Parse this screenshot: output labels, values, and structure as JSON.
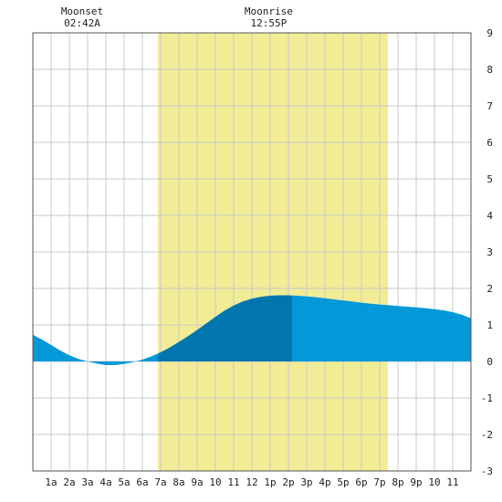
{
  "chart_data": {
    "type": "area",
    "x_unit": "hour of day",
    "xlim": [
      0,
      24
    ],
    "ylim": [
      -3,
      9
    ],
    "y_ticks": [
      9,
      8,
      7,
      6,
      5,
      4,
      3,
      2,
      1,
      0,
      -1,
      -2,
      -3
    ],
    "x_ticks": [
      {
        "x": 1,
        "label": "1a"
      },
      {
        "x": 2,
        "label": "2a"
      },
      {
        "x": 3,
        "label": "3a"
      },
      {
        "x": 4,
        "label": "4a"
      },
      {
        "x": 5,
        "label": "5a"
      },
      {
        "x": 6,
        "label": "6a"
      },
      {
        "x": 7,
        "label": "7a"
      },
      {
        "x": 8,
        "label": "8a"
      },
      {
        "x": 9,
        "label": "9a"
      },
      {
        "x": 10,
        "label": "10"
      },
      {
        "x": 11,
        "label": "11"
      },
      {
        "x": 12,
        "label": "12"
      },
      {
        "x": 13,
        "label": "1p"
      },
      {
        "x": 14,
        "label": "2p"
      },
      {
        "x": 15,
        "label": "3p"
      },
      {
        "x": 16,
        "label": "4p"
      },
      {
        "x": 17,
        "label": "5p"
      },
      {
        "x": 18,
        "label": "6p"
      },
      {
        "x": 19,
        "label": "7p"
      },
      {
        "x": 20,
        "label": "8p"
      },
      {
        "x": 21,
        "label": "9p"
      },
      {
        "x": 22,
        "label": "10"
      },
      {
        "x": 23,
        "label": "11"
      }
    ],
    "daylight": {
      "start": 6.85,
      "end": 19.45
    },
    "series": [
      {
        "x": [
          0,
          0.5,
          1,
          1.5,
          2,
          2.5,
          3,
          3.5,
          4,
          4.5,
          5,
          5.5,
          6,
          6.5,
          7,
          7.5,
          8,
          8.5,
          9,
          9.5,
          10,
          10.5,
          11,
          11.5,
          12,
          12.5,
          13,
          13.5,
          14,
          14.5,
          15,
          15.5,
          16,
          16.5,
          17,
          17.5,
          18,
          18.5,
          19,
          19.5,
          20,
          20.5,
          21,
          21.5,
          22,
          22.5,
          23,
          23.5,
          24
        ],
        "values": [
          0.73,
          0.6,
          0.45,
          0.3,
          0.17,
          0.07,
          0.0,
          -0.06,
          -0.1,
          -0.1,
          -0.07,
          -0.02,
          0.05,
          0.14,
          0.25,
          0.38,
          0.53,
          0.69,
          0.86,
          1.04,
          1.22,
          1.39,
          1.53,
          1.64,
          1.72,
          1.77,
          1.8,
          1.81,
          1.81,
          1.8,
          1.78,
          1.76,
          1.73,
          1.7,
          1.67,
          1.64,
          1.61,
          1.58,
          1.56,
          1.54,
          1.52,
          1.5,
          1.48,
          1.46,
          1.43,
          1.4,
          1.35,
          1.28,
          1.18
        ]
      }
    ],
    "highlight_range": [
      6.85,
      14.2
    ],
    "colors": {
      "water": "#0398d8",
      "water_highlight": "#0176ae",
      "daylight": "#f2ec97",
      "grid": "#c8c8c8",
      "frame": "#555555"
    },
    "annotations": [
      {
        "x": 2.7,
        "title": "Moonset",
        "time": "02:42A"
      },
      {
        "x": 12.917,
        "title": "Moonrise",
        "time": "12:55P"
      }
    ]
  }
}
